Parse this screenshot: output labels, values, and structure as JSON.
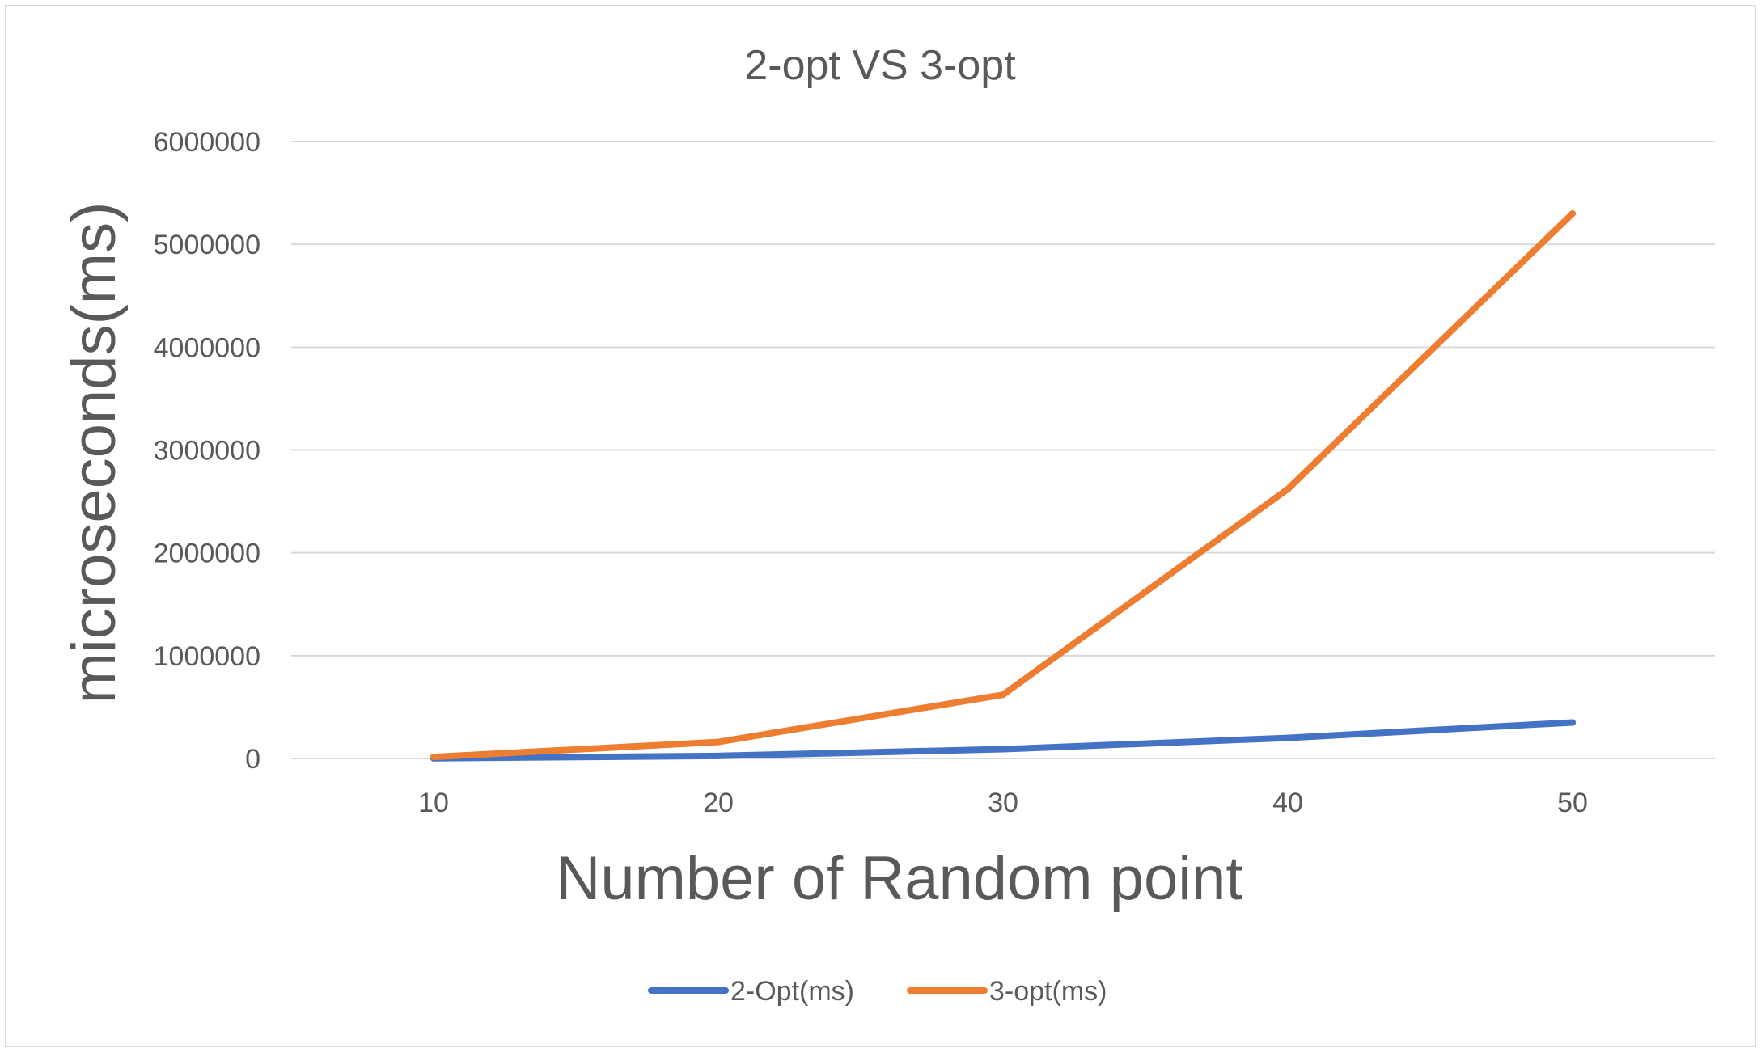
{
  "chart_data": {
    "type": "line",
    "title": "2-opt VS 3-opt",
    "xlabel": "Number of Random point",
    "ylabel": "microseconds(ms)",
    "categories": [
      "10",
      "20",
      "30",
      "40",
      "50"
    ],
    "ylim": [
      0,
      6000000
    ],
    "yticks": [
      "0",
      "1000000",
      "2000000",
      "3000000",
      "4000000",
      "5000000",
      "6000000"
    ],
    "grid": true,
    "legend_position": "bottom",
    "series": [
      {
        "name": "2-Opt(ms)",
        "color": "#4472c4",
        "values": [
          2000,
          25000,
          90000,
          200000,
          350000
        ]
      },
      {
        "name": "3-opt(ms)",
        "color": "#ed7d31",
        "values": [
          15000,
          160000,
          620000,
          2620000,
          5300000
        ]
      }
    ]
  }
}
